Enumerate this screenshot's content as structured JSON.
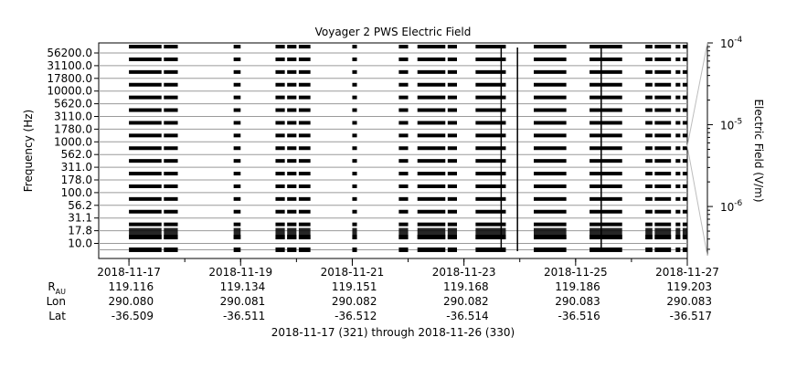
{
  "chart_data": {
    "type": "heatmap",
    "title": "Voyager 2 PWS Electric Field",
    "ylabel": "Frequency (Hz)",
    "colorbar_label": "Electric Field (V/m)",
    "colorbar_ticks": [
      {
        "base": "10",
        "exp": "-4",
        "value": 0.0001
      },
      {
        "base": "10",
        "exp": "-5",
        "value": 1e-05
      },
      {
        "base": "10",
        "exp": "-6",
        "value": 1e-06
      }
    ],
    "colorbar_range": [
      2.5e-07,
      0.0001
    ],
    "colorbar_scale": "log",
    "frequency_channels": [
      "10.0",
      "17.8",
      "31.1",
      "56.2",
      "100.0",
      "178.0",
      "311.0",
      "562.0",
      "1000.0",
      "1780.0",
      "3110.0",
      "5620.0",
      "10000.0",
      "17800.0",
      "31100.0",
      "56200.0"
    ],
    "x_ticks": [
      {
        "date": "2018-11-17",
        "rau": "119.116",
        "lon": "290.080",
        "lat": "-36.509"
      },
      {
        "date": "2018-11-19",
        "rau": "119.134",
        "lon": "290.081",
        "lat": "-36.511"
      },
      {
        "date": "2018-11-21",
        "rau": "119.151",
        "lon": "290.082",
        "lat": "-36.512"
      },
      {
        "date": "2018-11-23",
        "rau": "119.168",
        "lon": "290.082",
        "lat": "-36.514"
      },
      {
        "date": "2018-11-25",
        "rau": "119.186",
        "lon": "290.083",
        "lat": "-36.516"
      },
      {
        "date": "2018-11-27",
        "rau": "119.203",
        "lon": "290.083",
        "lat": "-36.517"
      }
    ],
    "x_range": [
      "2018-11-16 11:00",
      "2018-11-27 00:00"
    ],
    "row_labels": {
      "rau_base": "R",
      "rau_sub": "AU",
      "lon": "Lon",
      "lat": "Lat"
    },
    "footer": "2018-11-17 (321) through 2018-11-26 (330)",
    "data_segments": [
      [
        "2018-11-17 00:00",
        "2018-11-17 14:00"
      ],
      [
        "2018-11-17 15:00",
        "2018-11-17 21:00"
      ],
      [
        "2018-11-18 21:00",
        "2018-11-19 00:00"
      ],
      [
        "2018-11-19 15:00",
        "2018-11-19 19:00"
      ],
      [
        "2018-11-19 20:00",
        "2018-11-20 00:00"
      ],
      [
        "2018-11-20 01:00",
        "2018-11-20 06:00"
      ],
      [
        "2018-11-21 00:00",
        "2018-11-21 02:00"
      ],
      [
        "2018-11-21 20:00",
        "2018-11-22 00:00"
      ],
      [
        "2018-11-22 04:00",
        "2018-11-22 16:00"
      ],
      [
        "2018-11-22 17:00",
        "2018-11-22 21:00"
      ],
      [
        "2018-11-23 05:00",
        "2018-11-23 18:00"
      ],
      [
        "2018-11-24 06:00",
        "2018-11-24 20:00"
      ],
      [
        "2018-11-25 06:00",
        "2018-11-25 20:00"
      ],
      [
        "2018-11-26 06:00",
        "2018-11-26 09:00"
      ],
      [
        "2018-11-26 10:00",
        "2018-11-26 17:00"
      ],
      [
        "2018-11-26 19:00",
        "2018-11-26 21:00"
      ],
      [
        "2018-11-26 22:00",
        "2018-11-27 00:00"
      ]
    ],
    "vertical_spikes": [
      "2018-11-23 16:00",
      "2018-11-23 23:00",
      "2018-11-25 11:00"
    ],
    "grid": true
  }
}
